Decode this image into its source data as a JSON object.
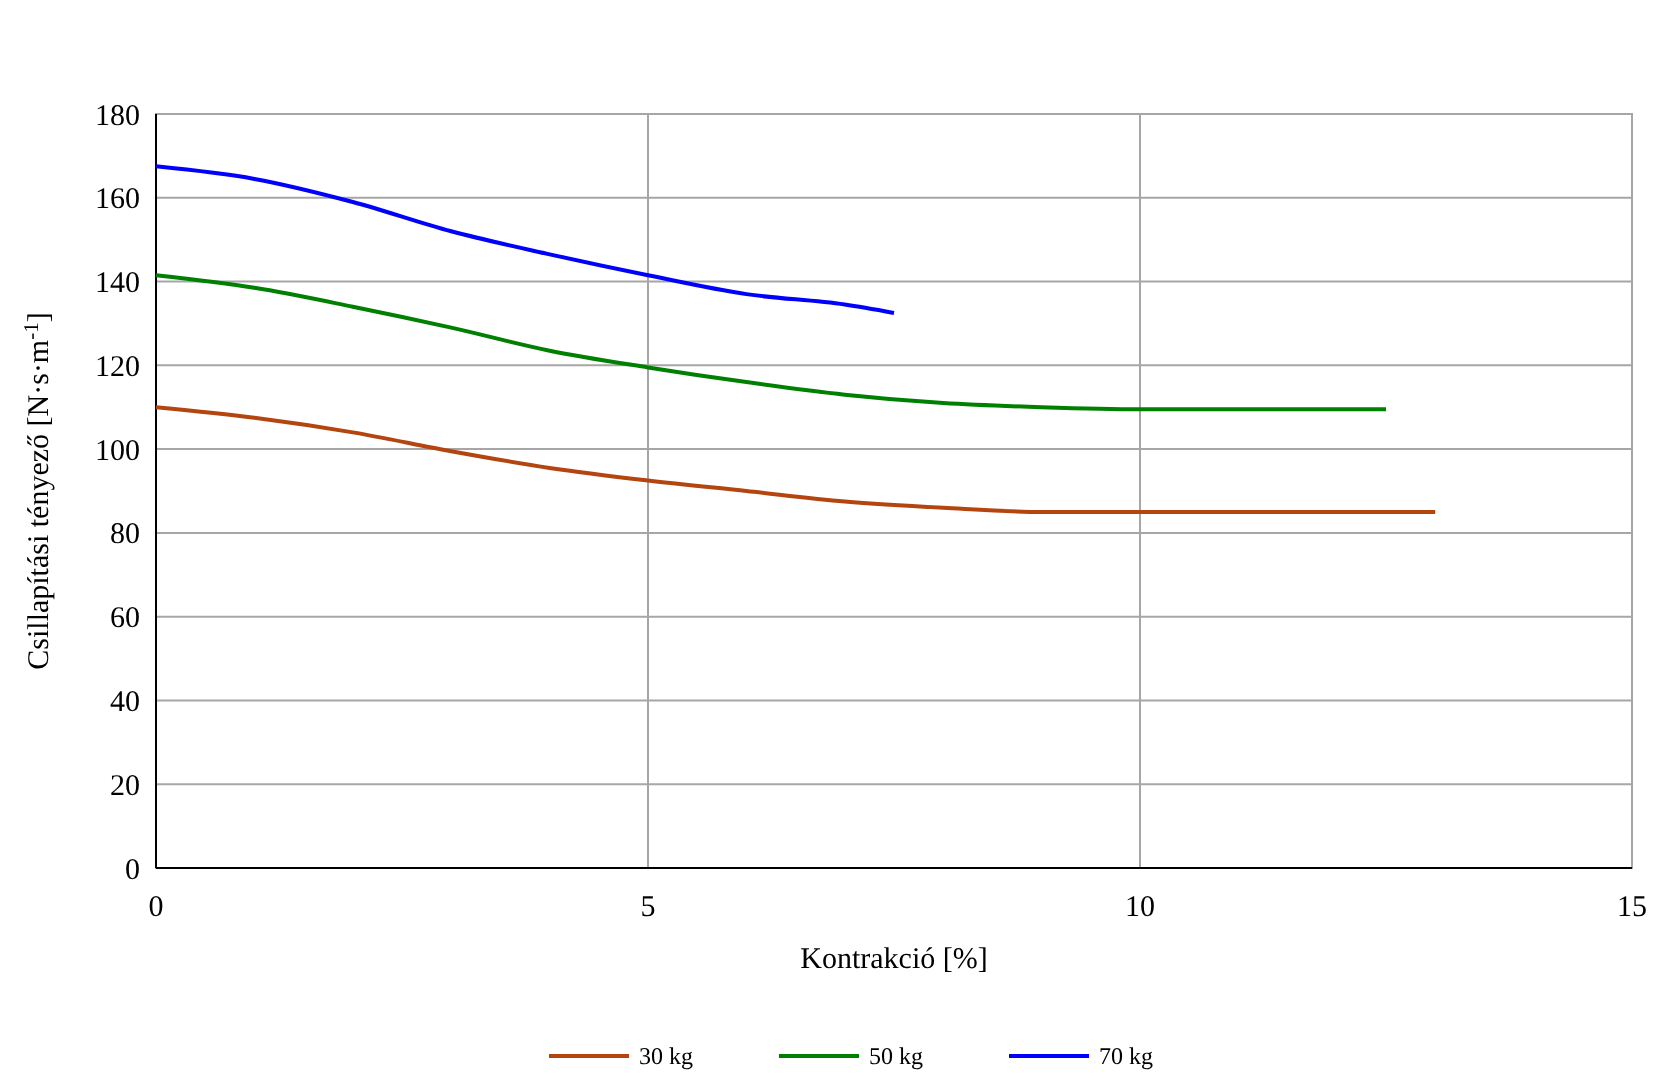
{
  "chart_data": {
    "type": "line",
    "xlabel": "Kontrakció [%]",
    "ylabel": "Csillapítási tényező [N·s·m$^{-1}$]",
    "x": [
      0,
      1,
      2,
      3,
      4,
      5,
      6,
      7,
      8,
      9,
      10,
      11,
      12,
      13
    ],
    "series": [
      {
        "name": "30 kg",
        "color": "#b5450f",
        "values": [
          110,
          107.5,
          104,
          99.5,
          95.5,
          92.5,
          90,
          87.5,
          86,
          85,
          85,
          85,
          85,
          85
        ]
      },
      {
        "name": "50 kg",
        "color": "#008000",
        "x": [
          0,
          1,
          2,
          3,
          4,
          5,
          6,
          7,
          8,
          9,
          10,
          11,
          12,
          12.5
        ],
        "values": [
          141.5,
          138.5,
          134,
          129,
          123.5,
          119.5,
          116,
          113,
          111,
          110,
          109.5,
          109.5,
          109.5,
          109.5
        ]
      },
      {
        "name": "70 kg",
        "color": "#0000ff",
        "x": [
          0,
          1,
          2,
          3,
          4,
          5,
          6,
          7,
          7.5
        ],
        "values": [
          167.5,
          164.5,
          159,
          152,
          146.5,
          141.5,
          137,
          134.5,
          132.5
        ]
      }
    ],
    "xlim": [
      0,
      15
    ],
    "xticks": [
      0,
      5,
      10,
      15
    ],
    "ylim": [
      0,
      180
    ],
    "yticks": [
      0,
      20,
      40,
      60,
      80,
      100,
      120,
      140,
      160,
      180
    ],
    "grid": true,
    "legend": "bottom",
    "marker": "none",
    "line_style": "solid"
  }
}
